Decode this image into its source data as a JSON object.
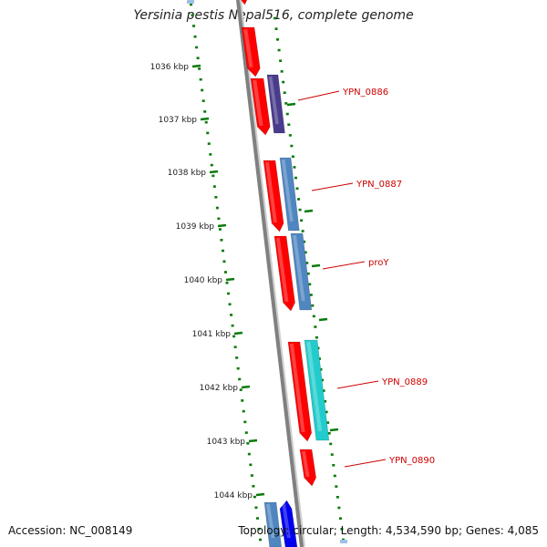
{
  "title": "Yersinia pestis Nepal516, complete genome",
  "footer": {
    "accession": "Accession: NC_008149",
    "topology": "Topology: circular; Length: 4,534,590 bp; Genes: 4,085"
  },
  "colors": {
    "backbone": "#808080",
    "tick": "#0a7a0a",
    "forward_feature": "#ff0000",
    "gene_label": "#cc0000",
    "blue": "#4f86c1",
    "navy": "#4a3c8c",
    "cyan": "#22cccc",
    "bright_blue": "#0000ee",
    "pale_blue": "#9fc0e6"
  },
  "scale_labels": [
    "1036 kbp",
    "1037 kbp",
    "1038 kbp",
    "1039 kbp",
    "1040 kbp",
    "1041 kbp",
    "1042 kbp",
    "1043 kbp",
    "1044 kbp"
  ],
  "gene_labels": [
    "YPN_0886",
    "YPN_0887",
    "proY",
    "YPN_0889",
    "YPN_0890"
  ]
}
